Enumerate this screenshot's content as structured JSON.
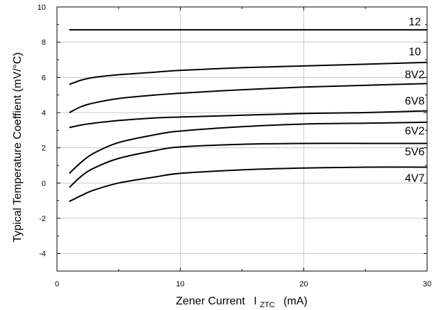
{
  "chart_data": {
    "type": "line",
    "xlabel_main": "Zener Current",
    "xlabel_symbol": "I",
    "xlabel_subscript": "ZTC",
    "xlabel_unit": "(mA)",
    "ylabel": "Typical Temperature Coeffient (mV/°C)",
    "xlim": [
      0,
      30
    ],
    "ylim": [
      -5,
      10
    ],
    "x_ticks": [
      0,
      10,
      20,
      30
    ],
    "y_ticks": [
      -4,
      -2,
      0,
      2,
      4,
      6,
      8,
      10
    ],
    "grid": true,
    "series": [
      {
        "name": "12",
        "x": [
          1,
          30
        ],
        "y": [
          8.7,
          8.7
        ]
      },
      {
        "name": "10",
        "x": [
          1,
          2,
          3,
          5,
          8,
          10,
          15,
          20,
          25,
          30
        ],
        "y": [
          5.6,
          5.85,
          6.0,
          6.15,
          6.3,
          6.4,
          6.55,
          6.65,
          6.75,
          6.85
        ]
      },
      {
        "name": "8V2",
        "x": [
          1,
          2,
          3,
          5,
          8,
          10,
          15,
          20,
          25,
          30
        ],
        "y": [
          4.0,
          4.35,
          4.55,
          4.8,
          5.0,
          5.1,
          5.3,
          5.45,
          5.55,
          5.65
        ]
      },
      {
        "name": "6V8",
        "x": [
          1,
          2,
          3,
          5,
          8,
          10,
          15,
          20,
          25,
          30
        ],
        "y": [
          3.15,
          3.3,
          3.4,
          3.55,
          3.7,
          3.75,
          3.85,
          3.95,
          4.0,
          4.1
        ]
      },
      {
        "name": "6V2",
        "x": [
          1,
          2,
          3,
          5,
          8,
          10,
          15,
          20,
          25,
          30
        ],
        "y": [
          0.55,
          1.2,
          1.7,
          2.3,
          2.75,
          2.95,
          3.2,
          3.35,
          3.4,
          3.45
        ]
      },
      {
        "name": "5V6",
        "x": [
          1,
          2,
          3,
          5,
          8,
          10,
          15,
          20,
          25,
          30
        ],
        "y": [
          -0.25,
          0.4,
          0.85,
          1.4,
          1.85,
          2.05,
          2.2,
          2.25,
          2.25,
          2.25
        ]
      },
      {
        "name": "4V7",
        "x": [
          1,
          2,
          3,
          5,
          8,
          10,
          15,
          20,
          25,
          30
        ],
        "y": [
          -1.05,
          -0.7,
          -0.4,
          0.0,
          0.35,
          0.55,
          0.75,
          0.85,
          0.9,
          0.9
        ]
      }
    ],
    "label_y": [
      9.2,
      7.5,
      6.2,
      4.7,
      3.0,
      1.8,
      0.3
    ],
    "label_x": 29
  }
}
